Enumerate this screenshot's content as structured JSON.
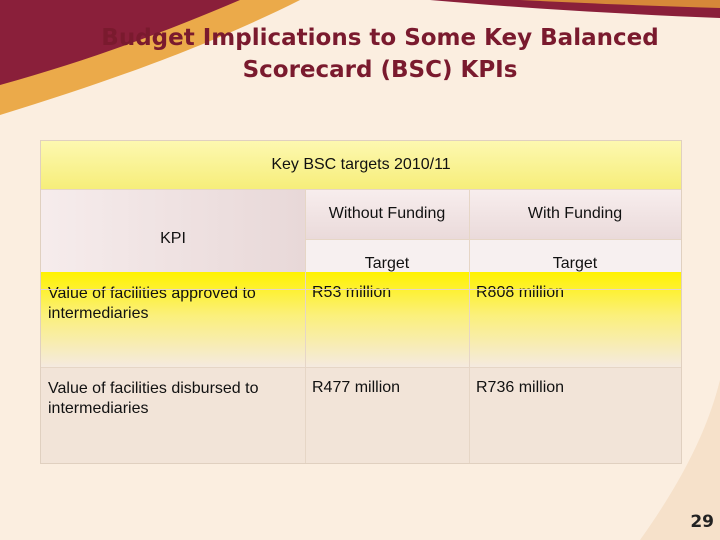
{
  "slide": {
    "title_line1": "Budget Implications to Some Key Balanced",
    "title_line2": "Scorecard (BSC)  KPIs",
    "page_number": "29"
  },
  "table": {
    "group_header": "Key BSC targets 2010/11",
    "kpi_header": "KPI",
    "col_without_funding": "Without Funding",
    "col_with_funding": "With Funding",
    "sub_without": "Target",
    "sub_with": "Target",
    "rows": [
      {
        "kpi": "Value of facilities approved to intermediaries",
        "without_funding": "R53 million",
        "with_funding": "R808 million"
      },
      {
        "kpi": "Value of facilities disbursed to intermediaries",
        "without_funding": "R477 million",
        "with_funding": "R736 million"
      }
    ]
  },
  "colors": {
    "title": "#7a1a2e",
    "ribbon_dark": "#8a1f3a",
    "ribbon_orange": "#e9a23a",
    "highlight_yellow": "#fff200"
  }
}
